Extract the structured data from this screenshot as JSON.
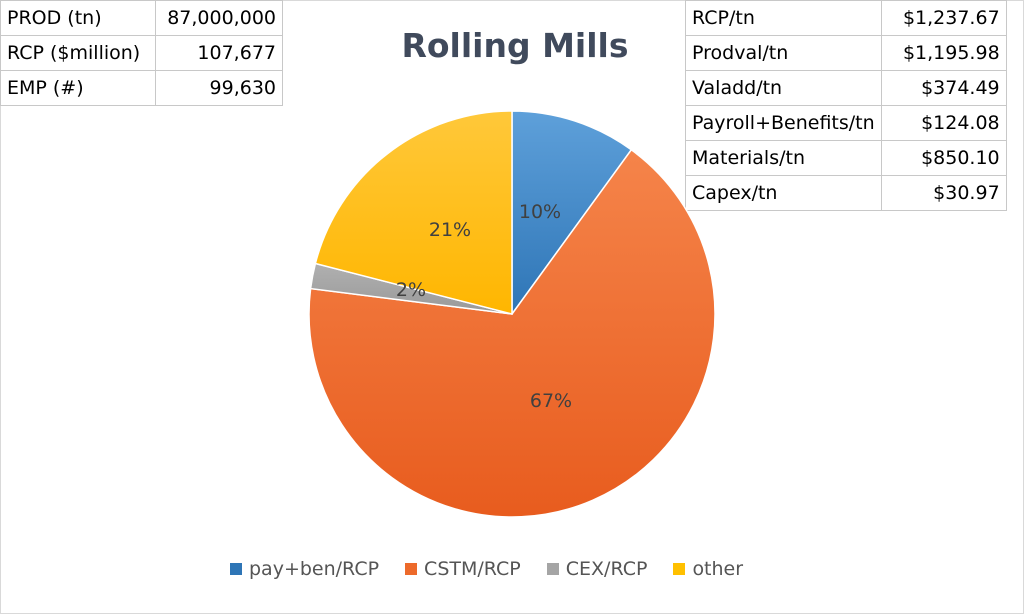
{
  "left_table": [
    {
      "label": "PROD (tn)",
      "value": "87,000,000"
    },
    {
      "label": "RCP ($million)",
      "value": "107,677"
    },
    {
      "label": "EMP (#)",
      "value": "99,630"
    }
  ],
  "right_table": [
    {
      "label": "RCP/tn",
      "value": "$1,237.67"
    },
    {
      "label": "Prodval/tn",
      "value": "$1,195.98"
    },
    {
      "label": "Valadd/tn",
      "value": "$374.49"
    },
    {
      "label": "Payroll+Benefits/tn",
      "value": "$124.08"
    },
    {
      "label": "Materials/tn",
      "value": "$850.10"
    },
    {
      "label": "Capex/tn",
      "value": "$30.97"
    }
  ],
  "chart_data": {
    "type": "pie",
    "title": "Rolling Mills",
    "categories": [
      "pay+ben/RCP",
      "CSTM/RCP",
      "CEX/RCP",
      "other"
    ],
    "values": [
      10,
      67,
      2,
      21
    ],
    "labels": [
      "10%",
      "67%",
      "2%",
      "21%"
    ],
    "colors": [
      "#5b9bd5",
      "#ed7d31",
      "#a5a5a5",
      "#ffc000"
    ],
    "legend_colors": [
      "#2e75b6",
      "#ed6a2b",
      "#a5a5a5",
      "#ffc000"
    ],
    "legend": "bottom"
  }
}
